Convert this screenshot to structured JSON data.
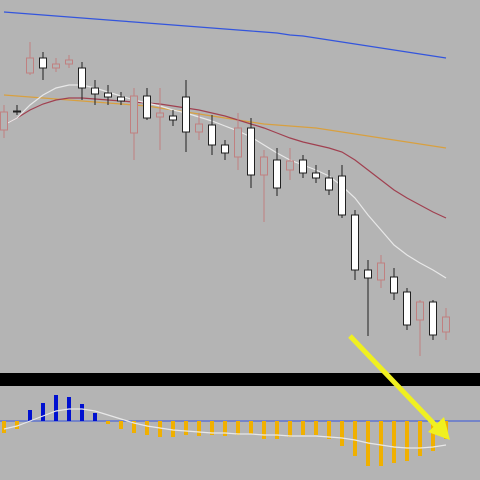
{
  "chart_data": [
    {
      "type": "candlestick",
      "ylim": [
        0,
        370
      ],
      "up_color": "#c08080",
      "up_fill": "#b4b4b4",
      "down_color": "#202020",
      "down_fill": "#ffffff",
      "open": [
        240,
        259,
        297,
        312,
        302,
        306,
        302,
        282,
        277,
        273,
        237,
        274,
        253,
        254,
        273,
        238,
        245,
        225,
        213,
        242,
        195,
        210,
        200,
        210,
        197,
        192,
        194,
        155,
        100,
        90,
        93,
        78,
        50,
        68,
        38
      ],
      "high": [
        265,
        265,
        328,
        318,
        312,
        315,
        308,
        290,
        285,
        278,
        282,
        282,
        282,
        260,
        290,
        257,
        255,
        230,
        257,
        252,
        220,
        222,
        222,
        215,
        205,
        200,
        205,
        160,
        110,
        115,
        102,
        82,
        70,
        70,
        62
      ],
      "low": [
        232,
        255,
        295,
        290,
        298,
        302,
        270,
        265,
        265,
        265,
        210,
        250,
        220,
        244,
        218,
        230,
        215,
        210,
        200,
        182,
        148,
        174,
        190,
        192,
        187,
        175,
        152,
        90,
        34,
        82,
        70,
        40,
        14,
        30,
        30
      ],
      "close": [
        258,
        258,
        312,
        302,
        306,
        310,
        282,
        276,
        273,
        269,
        274,
        252,
        257,
        250,
        238,
        246,
        225,
        217,
        242,
        195,
        213,
        182,
        209,
        197,
        192,
        180,
        155,
        100,
        92,
        107,
        77,
        45,
        68,
        35,
        53
      ],
      "lines": [
        {
          "color": "#3355dd",
          "values": [
            358,
            357,
            356,
            355,
            354,
            353,
            352,
            351,
            350,
            349,
            348,
            347,
            346,
            345,
            344,
            343,
            342,
            341,
            340,
            339,
            338,
            337,
            335,
            334,
            332,
            330,
            328,
            326,
            324,
            322,
            320,
            318,
            316,
            314,
            312
          ]
        },
        {
          "color": "#d8a040",
          "values": [
            275,
            274,
            273,
            272,
            271,
            270,
            269,
            268,
            267,
            266,
            265,
            264,
            262,
            260,
            258,
            256,
            254,
            252,
            250,
            248,
            246,
            245,
            244,
            243,
            242,
            240,
            238,
            236,
            234,
            232,
            230,
            228,
            226,
            224,
            222
          ]
        },
        {
          "color": "#a04050",
          "values": [
            245,
            252,
            260,
            266,
            270,
            272,
            272,
            271,
            270,
            269,
            268,
            267,
            266,
            264,
            262,
            260,
            257,
            254,
            250,
            246,
            242,
            237,
            232,
            228,
            225,
            222,
            218,
            210,
            200,
            190,
            180,
            172,
            165,
            158,
            152
          ]
        },
        {
          "color": "#e8e8e8",
          "values": [
            245,
            252,
            265,
            275,
            282,
            285,
            285,
            282,
            278,
            274,
            270,
            267,
            264,
            260,
            257,
            253,
            249,
            244,
            239,
            233,
            225,
            217,
            210,
            205,
            200,
            194,
            184,
            172,
            155,
            140,
            125,
            115,
            107,
            100,
            92
          ]
        }
      ]
    },
    {
      "type": "bar",
      "ylim": [
        -59,
        36
      ],
      "positive_color": "#0010d0",
      "negative_color": "#f0b000",
      "zero_color": "#3355dd",
      "values": [
        -12,
        -8,
        11,
        18,
        26,
        24,
        17,
        8,
        -3,
        -8,
        -12,
        -14,
        -16,
        -16,
        -14,
        -15,
        -14,
        -15,
        -14,
        -13,
        -18,
        -18,
        -16,
        -14,
        -14,
        -18,
        -25,
        -35,
        -45,
        -45,
        -42,
        -40,
        -35,
        -30,
        -18
      ],
      "signal": {
        "color": "#e8e8e8",
        "values": [
          -8,
          -5,
          0,
          5,
          10,
          12,
          12,
          10,
          6,
          2,
          -2,
          -5,
          -7,
          -9,
          -10,
          -11,
          -12,
          -12,
          -13,
          -13,
          -14,
          -14,
          -15,
          -15,
          -15,
          -16,
          -17,
          -19,
          -22,
          -24,
          -26,
          -27,
          -27,
          -26,
          -24
        ]
      }
    }
  ]
}
